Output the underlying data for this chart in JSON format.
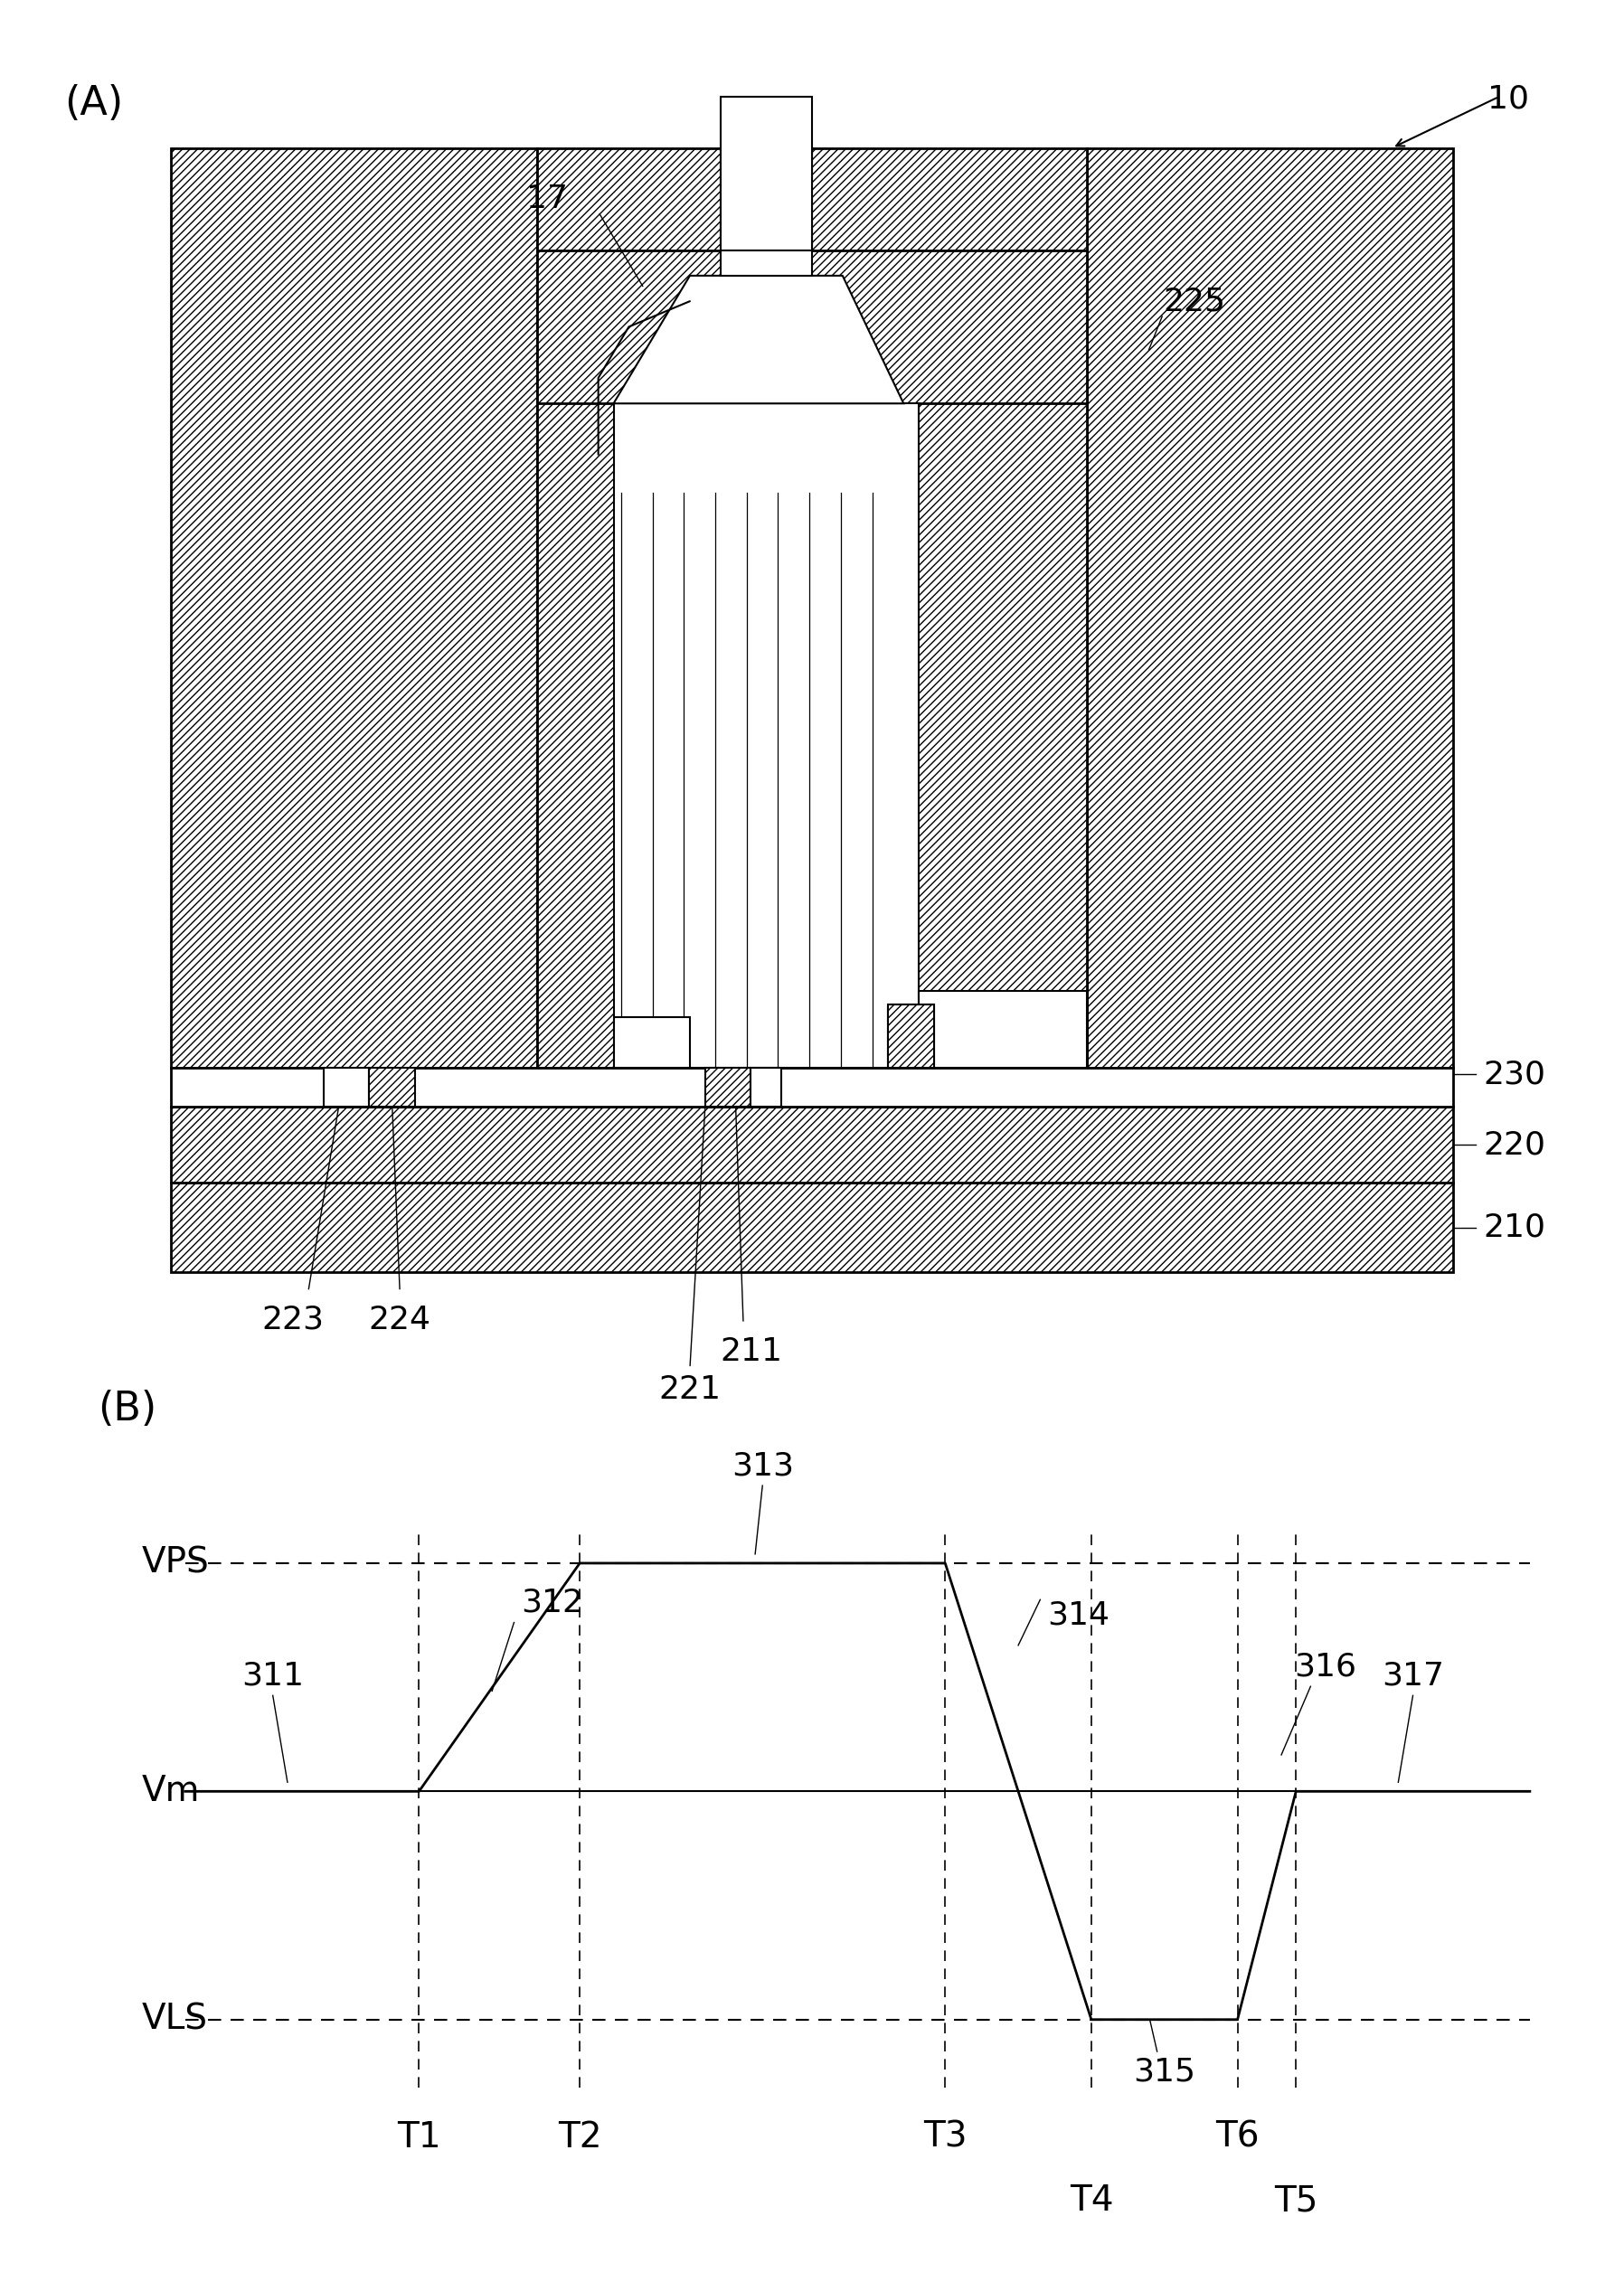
{
  "fig_width": 17.96,
  "fig_height": 25.24,
  "bg_color": "#ffffff",
  "label_A": "(A)",
  "label_B": "(B)",
  "ref_10": "10",
  "ref_17": "17",
  "ref_225": "225",
  "ref_230": "230",
  "ref_220": "220",
  "ref_210": "210",
  "ref_223": "223",
  "ref_224": "224",
  "ref_211": "211",
  "ref_221": "221",
  "ref_311": "311",
  "ref_312": "312",
  "ref_313": "313",
  "ref_314": "314",
  "ref_315": "315",
  "ref_316": "316",
  "ref_317": "317",
  "vps_label": "VPS",
  "vm_label": "Vm",
  "vls_label": "VLS",
  "t1_label": "T1",
  "t2_label": "T2",
  "t3_label": "T3",
  "t4_label": "T4",
  "t5_label": "T5",
  "t6_label": "T6",
  "fontsize_label": 32,
  "fontsize_ref": 26,
  "fontsize_axis": 28
}
